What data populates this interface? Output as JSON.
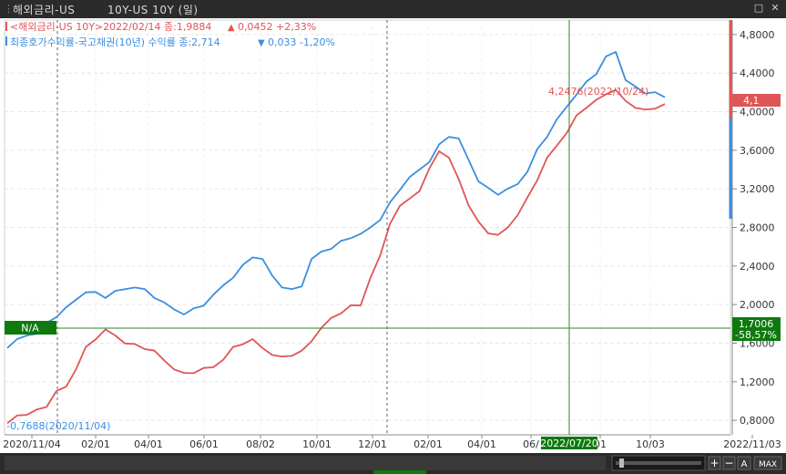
{
  "window": {
    "title": "해외금리-US",
    "subtitle": "10Y-US 10Y (일)",
    "controls": {
      "restore": "□",
      "close": "✕"
    }
  },
  "legend": {
    "series1": {
      "text": "<해외금리-US 10Y>2022/02/14 종:1,9884",
      "change_arrow": "▲",
      "change": "0,0452 +2,33%",
      "color": "#e05555"
    },
    "series2": {
      "text": "최종호가수익률-국고채권(10년) 수익률 종:2,714",
      "change_arrow": "▼",
      "change": "0,033 -1,20%",
      "color": "#3b8ee0"
    }
  },
  "annotations": {
    "max_label": "4,2476(2022/10/24)",
    "min_label": "-0,7688(2020/11/04)",
    "right_price_box": "4,1",
    "crosshair_left": "N/A",
    "crosshair_right_value": "1,7006",
    "crosshair_right_change": "-58,57%",
    "crosshair_date": "2022/07/20"
  },
  "bottom_controls": {
    "plus": "+",
    "minus": "−",
    "auto": "A",
    "max": "MAX"
  },
  "chart_data": {
    "type": "line",
    "x_ticks": [
      "2020/11/04",
      "02/01",
      "04/01",
      "06/01",
      "08/02",
      "10/01",
      "12/01",
      "02/01",
      "04/01",
      "06/",
      "01",
      "10/03",
      "2022/11/03"
    ],
    "y_ticks": [
      "4,8000",
      "4,4000",
      "4,0000",
      "3,6000",
      "3,2000",
      "2,8000",
      "2,4000",
      "2,0000",
      "1,6000",
      "1,2000",
      "0,8000"
    ],
    "ylim": [
      0.65,
      4.95
    ],
    "series": [
      {
        "name": "해외금리-US 10Y",
        "color": "#e05555",
        "values": [
          0.77,
          0.85,
          0.88,
          0.9,
          0.95,
          1.08,
          1.15,
          1.35,
          1.55,
          1.65,
          1.72,
          1.68,
          1.62,
          1.58,
          1.55,
          1.5,
          1.42,
          1.35,
          1.28,
          1.3,
          1.32,
          1.35,
          1.45,
          1.55,
          1.6,
          1.62,
          1.55,
          1.5,
          1.45,
          1.48,
          1.5,
          1.62,
          1.78,
          1.85,
          1.92,
          1.97,
          1.99,
          2.3,
          2.5,
          2.85,
          3.0,
          3.1,
          3.2,
          3.4,
          3.6,
          3.5,
          3.3,
          3.05,
          2.85,
          2.75,
          2.7,
          2.8,
          2.95,
          3.1,
          3.3,
          3.5,
          3.65,
          3.8,
          3.95,
          4.05,
          4.1,
          4.18,
          4.2476,
          4.1,
          4.05,
          4.0,
          4.03,
          4.08
        ]
      },
      {
        "name": "최종호가수익률-국고채권(10년)",
        "color": "#3b8ee0",
        "values": [
          1.55,
          1.62,
          1.68,
          1.72,
          1.8,
          1.88,
          1.95,
          2.05,
          2.15,
          2.12,
          2.08,
          2.12,
          2.16,
          2.2,
          2.15,
          2.08,
          2.0,
          1.95,
          1.92,
          1.95,
          2.0,
          2.08,
          2.2,
          2.3,
          2.4,
          2.5,
          2.45,
          2.3,
          2.2,
          2.15,
          2.2,
          2.45,
          2.55,
          2.6,
          2.65,
          2.7,
          2.71,
          2.8,
          2.9,
          3.05,
          3.2,
          3.3,
          3.4,
          3.5,
          3.65,
          3.75,
          3.7,
          3.5,
          3.3,
          3.2,
          3.15,
          3.18,
          3.25,
          3.4,
          3.6,
          3.75,
          3.9,
          4.05,
          4.2,
          4.3,
          4.4,
          4.55,
          4.62,
          4.35,
          4.25,
          4.2,
          4.18,
          4.15
        ]
      }
    ]
  }
}
